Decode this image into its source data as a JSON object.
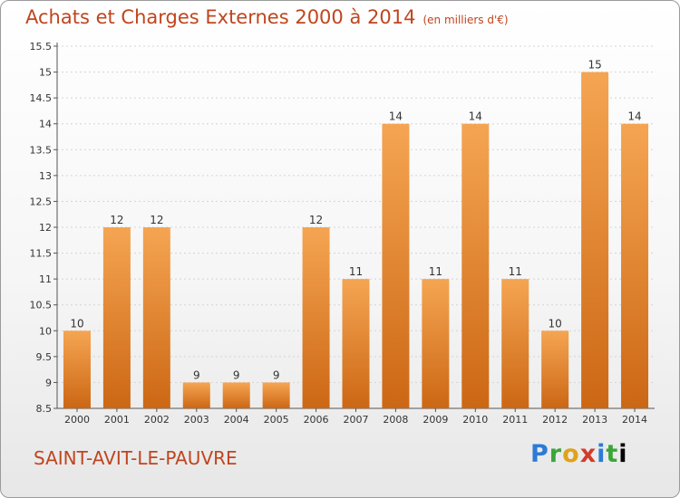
{
  "chart_data": {
    "type": "bar",
    "title": "Achats et Charges Externes 2000 à 2014",
    "subtitle": "(en milliers d'€)",
    "categories": [
      "2000",
      "2001",
      "2002",
      "2003",
      "2004",
      "2005",
      "2006",
      "2007",
      "2008",
      "2009",
      "2010",
      "2011",
      "2012",
      "2013",
      "2014"
    ],
    "values": [
      10,
      12,
      12,
      9,
      9,
      9,
      12,
      11,
      14,
      11,
      14,
      11,
      10,
      15,
      14
    ],
    "ylim": [
      8.5,
      15.5
    ],
    "yticks": [
      "8.5",
      "9",
      "9.5",
      "10",
      "10.5",
      "11",
      "11.5",
      "12",
      "12.5",
      "13",
      "13.5",
      "14",
      "14.5",
      "15",
      "15.5"
    ],
    "grid": true,
    "bar_color": "#e8842a"
  },
  "footer": {
    "commune": "SAINT-AVIT-LE-PAUVRE",
    "logo": [
      "P",
      "r",
      "o",
      "x",
      "i",
      "t",
      "i"
    ]
  }
}
